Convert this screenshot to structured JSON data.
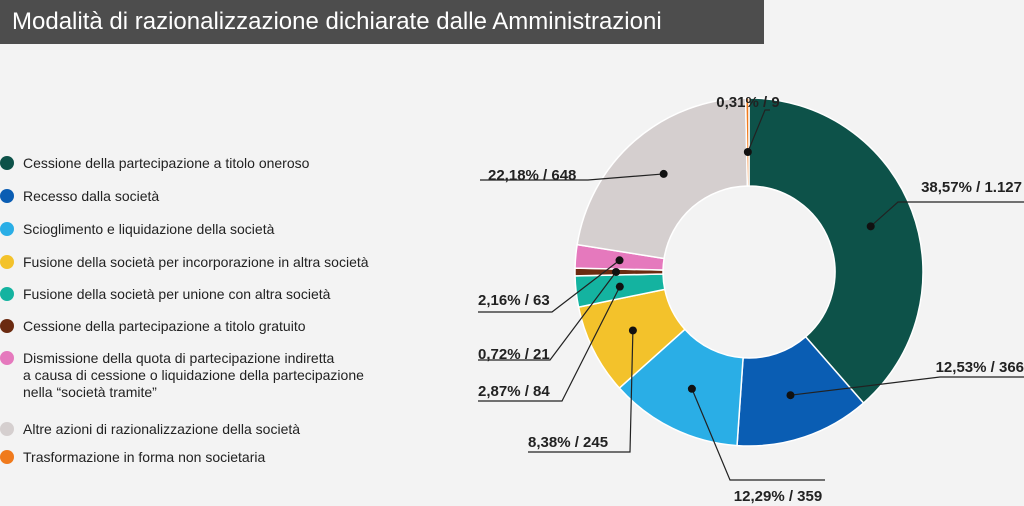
{
  "header": {
    "title": "Modalità di razionalizzazione dichiarate dalle Amministrazioni"
  },
  "chart_data": {
    "type": "pie",
    "variant": "donut",
    "title": "Modalità di razionalizzazione dichiarate dalle Amministrazioni",
    "legend_position": "left",
    "slices": [
      {
        "name": "Cessione della partecipazione a titolo oneroso",
        "percent": 38.57,
        "count": 1127,
        "label": "38,57% / 1.127",
        "color": "#0d5249"
      },
      {
        "name": "Recesso dalla società",
        "percent": 12.53,
        "count": 366,
        "label": "12,53% / 366",
        "color": "#0a5db3"
      },
      {
        "name": "Scioglimento e liquidazione della società",
        "percent": 12.29,
        "count": 359,
        "label": "12,29% / 359",
        "color": "#2aaee6"
      },
      {
        "name": "Fusione della società per incorporazione in altra società",
        "percent": 8.38,
        "count": 245,
        "label": "8,38% / 245",
        "color": "#f3c22b"
      },
      {
        "name": "Fusione della società per unione con altra società",
        "percent": 2.87,
        "count": 84,
        "label": "2,87% / 84",
        "color": "#14b3a0"
      },
      {
        "name": "Cessione della partecipazione a titolo gratuito",
        "percent": 0.72,
        "count": 21,
        "label": "0,72% / 21",
        "color": "#6b2a10"
      },
      {
        "name": "Dismissione della quota di partecipazione indiretta\na causa di cessione o liquidazione della partecipazione\nnella “società tramite”",
        "percent": 2.16,
        "count": 63,
        "label": "2,16% / 63",
        "color": "#e579bd"
      },
      {
        "name": "Altre azioni di razionalizzazione della società",
        "percent": 22.18,
        "count": 648,
        "label": "22,18% / 648",
        "color": "#d5cfcf"
      },
      {
        "name": "Trasformazione in forma non societaria",
        "percent": 0.31,
        "count": 9,
        "label": "0,31% / 9",
        "color": "#f07a1c"
      }
    ]
  }
}
